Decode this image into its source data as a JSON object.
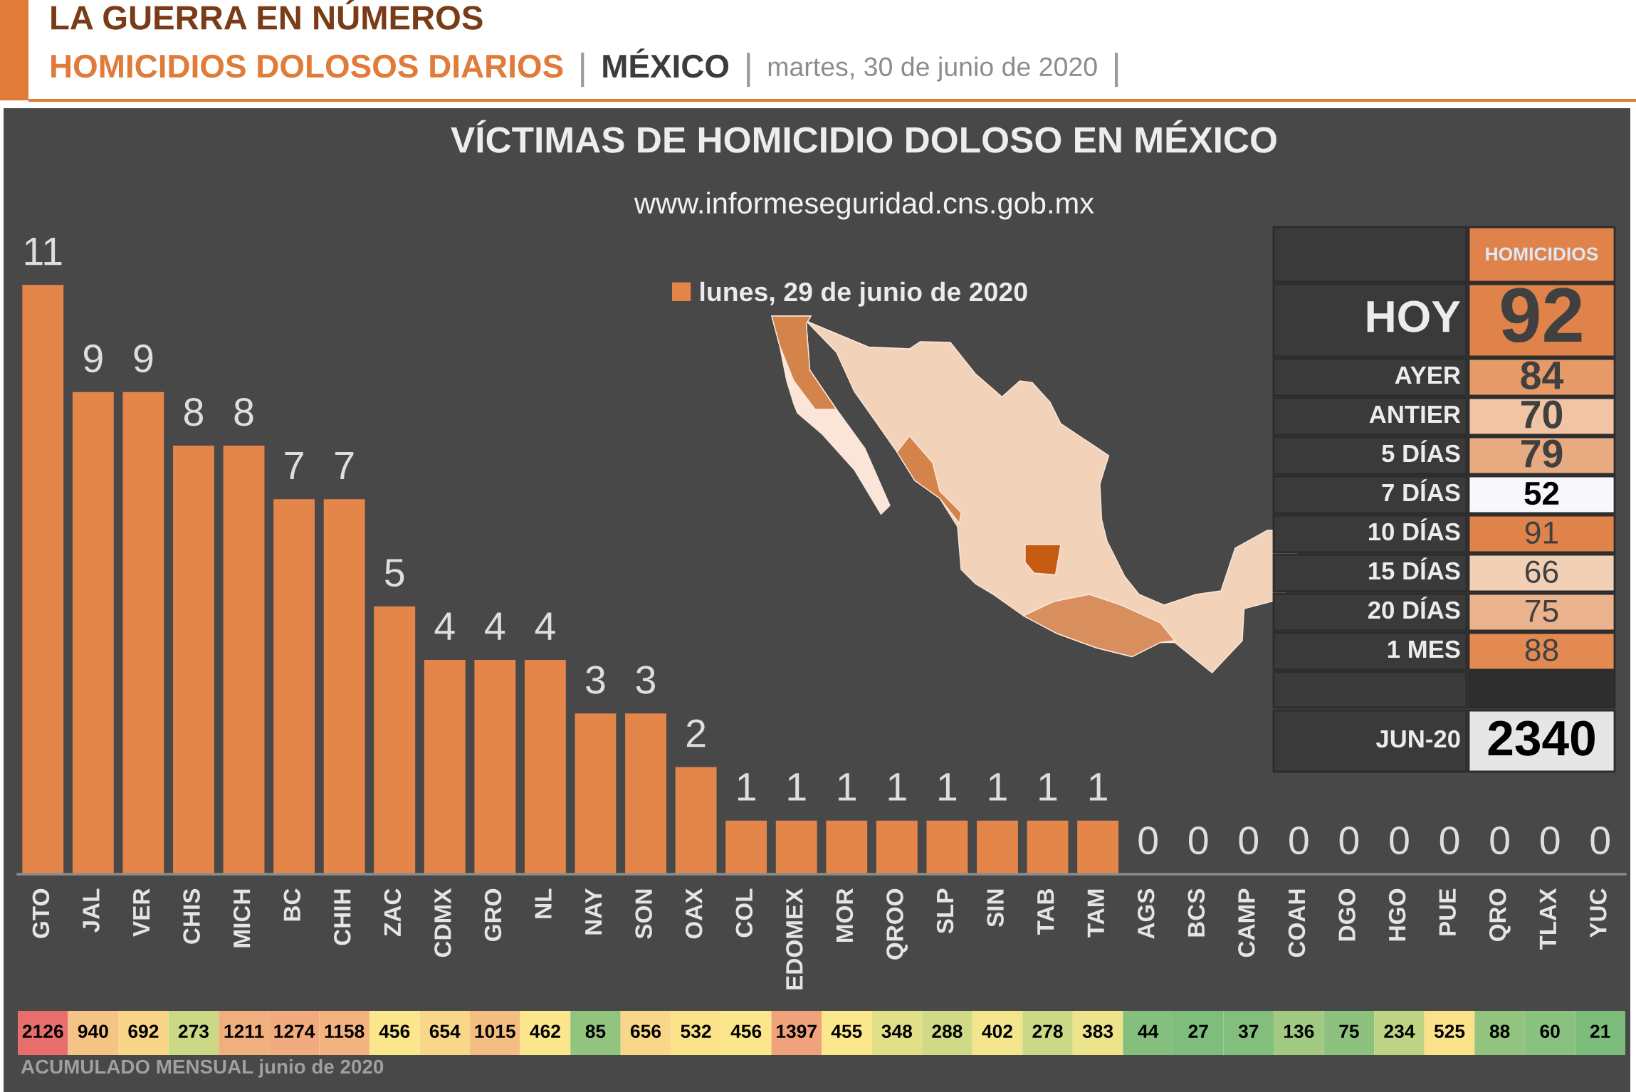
{
  "chart_data": [
    {
      "type": "other",
      "title": "LA GUERRA EN NÚMEROS",
      "annotations": [
        "HOMICIDIOS DOLOSOS DIARIOS",
        "MÉXICO",
        "martes, 30 de junio de 2020"
      ]
    },
    {
      "type": "bar",
      "title": "VÍCTIMAS DE HOMICIDIO DOLOSO EN MÉXICO",
      "subtitle": "www.informeseguridad.cns.gob.mx",
      "categories": [
        "GTO",
        "JAL",
        "VER",
        "CHIS",
        "MICH",
        "BC",
        "CHIH",
        "ZAC",
        "CDMX",
        "GRO",
        "NL",
        "NAY",
        "SON",
        "OAX",
        "COL",
        "EDOMEX",
        "MOR",
        "QROO",
        "SLP",
        "SIN",
        "TAB",
        "TAM",
        "AGS",
        "BCS",
        "CAMP",
        "COAH",
        "DGO",
        "HGO",
        "PUE",
        "QRO",
        "TLAX",
        "YUC"
      ],
      "series": [
        {
          "name": "lunes, 29 de junio de 2020",
          "color": "#e4854a",
          "values": [
            11,
            9,
            9,
            8,
            8,
            7,
            7,
            5,
            4,
            4,
            4,
            3,
            3,
            2,
            1,
            1,
            1,
            1,
            1,
            1,
            1,
            1,
            0,
            0,
            0,
            0,
            0,
            0,
            0,
            0,
            0,
            0
          ]
        }
      ],
      "data_labels": true,
      "legend": "top",
      "tick_labels": "x",
      "annotations": [
        "HOMICIDIOS",
        "HOY",
        "92",
        "AYER",
        "84",
        "ANTIER",
        "70",
        "5 DÍAS",
        "79",
        "7 DÍAS",
        "52",
        "10 DÍAS",
        "91",
        "15 DÍAS",
        "66",
        "20 DÍAS",
        "75",
        "1 MES",
        "88",
        "JUN-20",
        "2340"
      ]
    },
    {
      "type": "heatmap",
      "categories": [
        null,
        null,
        null,
        null,
        null,
        null,
        null,
        null,
        null,
        null,
        null,
        null,
        null,
        null,
        null,
        null,
        null,
        null,
        null,
        null,
        null,
        null,
        null,
        null,
        null,
        null,
        null,
        null,
        null,
        null,
        null,
        null
      ],
      "y_categories": [
        "ACUMULADO MENSUAL junio de 2020"
      ],
      "cells": [
        [
          2126,
          940,
          692,
          273,
          1211,
          1274,
          1158,
          456,
          654,
          1015,
          462,
          85,
          656,
          532,
          456,
          1397,
          455,
          348,
          288,
          402,
          278,
          383,
          44,
          27,
          37,
          136,
          75,
          234,
          525,
          88,
          60,
          21
        ]
      ],
      "data_labels": true
    }
  ]
}
